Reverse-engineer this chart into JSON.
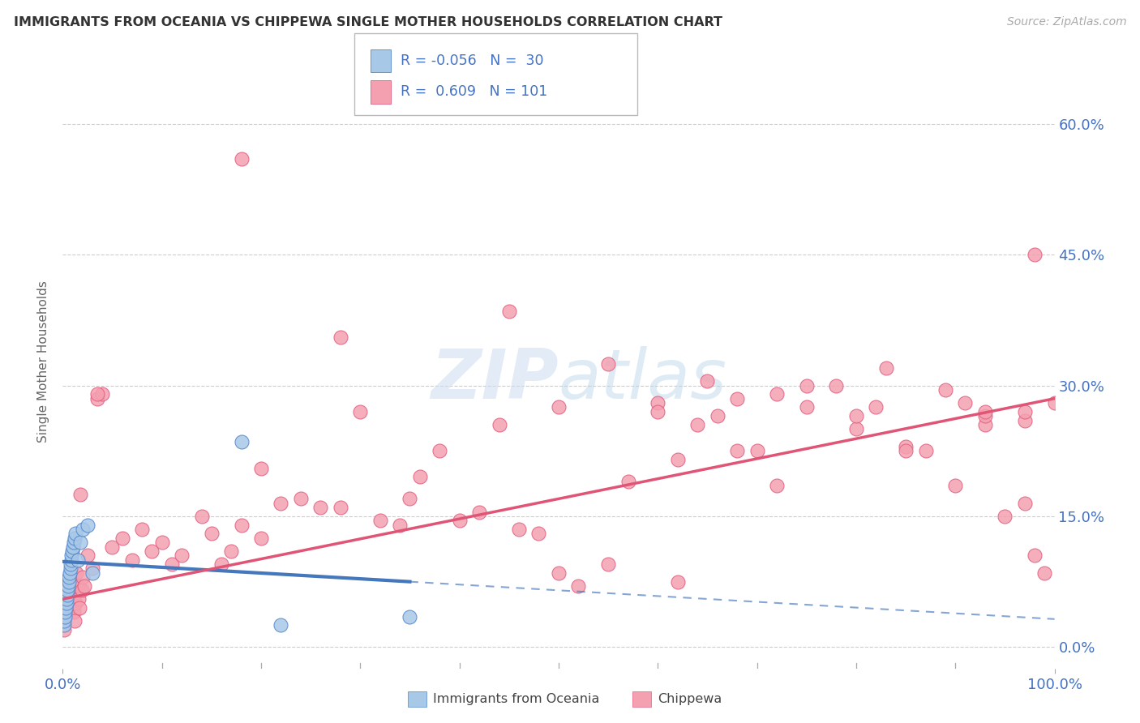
{
  "title": "IMMIGRANTS FROM OCEANIA VS CHIPPEWA SINGLE MOTHER HOUSEHOLDS CORRELATION CHART",
  "source_text": "Source: ZipAtlas.com",
  "ylabel": "Single Mother Households",
  "watermark": "ZIPatlas",
  "legend_r1": "R = -0.056",
  "legend_n1": "N =  30",
  "legend_r2": "R =  0.609",
  "legend_n2": "N = 101",
  "blue_color": "#a8c8e8",
  "pink_color": "#f4a0b0",
  "blue_edge_color": "#5588cc",
  "pink_edge_color": "#e06080",
  "blue_line_color": "#4477bb",
  "pink_line_color": "#e05575",
  "xmin": 0.0,
  "xmax": 100.0,
  "ymin": -2.5,
  "ymax": 68.0,
  "yticks": [
    0.0,
    15.0,
    30.0,
    45.0,
    60.0
  ],
  "blue_reg_x0": 0.0,
  "blue_reg_y0": 9.8,
  "blue_reg_x1": 100.0,
  "blue_reg_y1": 3.2,
  "blue_solid_end_x": 35.0,
  "pink_reg_x0": 0.0,
  "pink_reg_y0": 5.5,
  "pink_reg_x1": 100.0,
  "pink_reg_y1": 28.5,
  "background_color": "#ffffff",
  "grid_color": "#c8c8c8",
  "title_color": "#333333",
  "tick_color": "#4472c4",
  "blue_x": [
    0.1,
    0.15,
    0.2,
    0.25,
    0.3,
    0.35,
    0.4,
    0.45,
    0.5,
    0.55,
    0.6,
    0.65,
    0.7,
    0.75,
    0.8,
    0.85,
    0.9,
    0.95,
    1.0,
    1.1,
    1.2,
    1.3,
    1.5,
    1.8,
    2.0,
    2.5,
    3.0,
    18.0,
    22.0,
    35.0
  ],
  "blue_y": [
    2.5,
    3.0,
    3.5,
    4.0,
    4.5,
    5.0,
    5.5,
    6.0,
    6.5,
    7.0,
    7.5,
    8.0,
    8.5,
    9.0,
    9.5,
    10.0,
    10.5,
    11.0,
    11.5,
    12.0,
    12.5,
    13.0,
    10.0,
    12.0,
    13.5,
    14.0,
    8.5,
    23.5,
    2.5,
    3.5
  ],
  "pink_x": [
    0.1,
    0.2,
    0.3,
    0.4,
    0.5,
    0.6,
    0.7,
    0.8,
    0.9,
    1.0,
    1.1,
    1.2,
    1.3,
    1.4,
    1.5,
    1.6,
    1.7,
    1.8,
    1.9,
    2.0,
    2.2,
    2.5,
    3.0,
    3.5,
    4.0,
    5.0,
    6.0,
    7.0,
    8.0,
    9.0,
    10.0,
    11.0,
    12.0,
    14.0,
    15.0,
    16.0,
    17.0,
    18.0,
    20.0,
    22.0,
    24.0,
    26.0,
    28.0,
    30.0,
    32.0,
    34.0,
    36.0,
    38.0,
    40.0,
    42.0,
    44.0,
    46.0,
    48.0,
    50.0,
    52.0,
    55.0,
    57.0,
    60.0,
    62.0,
    64.0,
    66.0,
    68.0,
    70.0,
    72.0,
    75.0,
    78.0,
    80.0,
    82.0,
    85.0,
    87.0,
    89.0,
    91.0,
    93.0,
    95.0,
    97.0,
    98.0,
    99.0,
    100.0,
    3.5,
    18.0,
    28.0,
    45.0,
    55.0,
    65.0,
    75.0,
    85.0,
    93.0,
    97.0,
    20.0,
    35.0,
    50.0,
    62.0,
    72.0,
    83.0,
    93.0,
    98.0,
    60.0,
    68.0,
    80.0,
    90.0,
    97.0
  ],
  "pink_y": [
    2.0,
    3.5,
    4.0,
    5.5,
    6.0,
    4.5,
    7.0,
    6.5,
    5.0,
    7.5,
    4.0,
    3.0,
    5.0,
    8.5,
    7.0,
    5.5,
    4.5,
    17.5,
    6.5,
    8.0,
    7.0,
    10.5,
    9.0,
    28.5,
    29.0,
    11.5,
    12.5,
    10.0,
    13.5,
    11.0,
    12.0,
    9.5,
    10.5,
    15.0,
    13.0,
    9.5,
    11.0,
    14.0,
    12.5,
    16.5,
    17.0,
    16.0,
    16.0,
    27.0,
    14.5,
    14.0,
    19.5,
    22.5,
    14.5,
    15.5,
    25.5,
    13.5,
    13.0,
    8.5,
    7.0,
    9.5,
    19.0,
    28.0,
    7.5,
    25.5,
    26.5,
    28.5,
    22.5,
    29.0,
    27.5,
    30.0,
    25.0,
    27.5,
    23.0,
    22.5,
    29.5,
    28.0,
    25.5,
    15.0,
    16.5,
    10.5,
    8.5,
    28.0,
    29.0,
    56.0,
    35.5,
    38.5,
    32.5,
    30.5,
    30.0,
    22.5,
    26.5,
    26.0,
    20.5,
    17.0,
    27.5,
    21.5,
    18.5,
    32.0,
    27.0,
    45.0,
    27.0,
    22.5,
    26.5,
    18.5,
    27.0
  ]
}
